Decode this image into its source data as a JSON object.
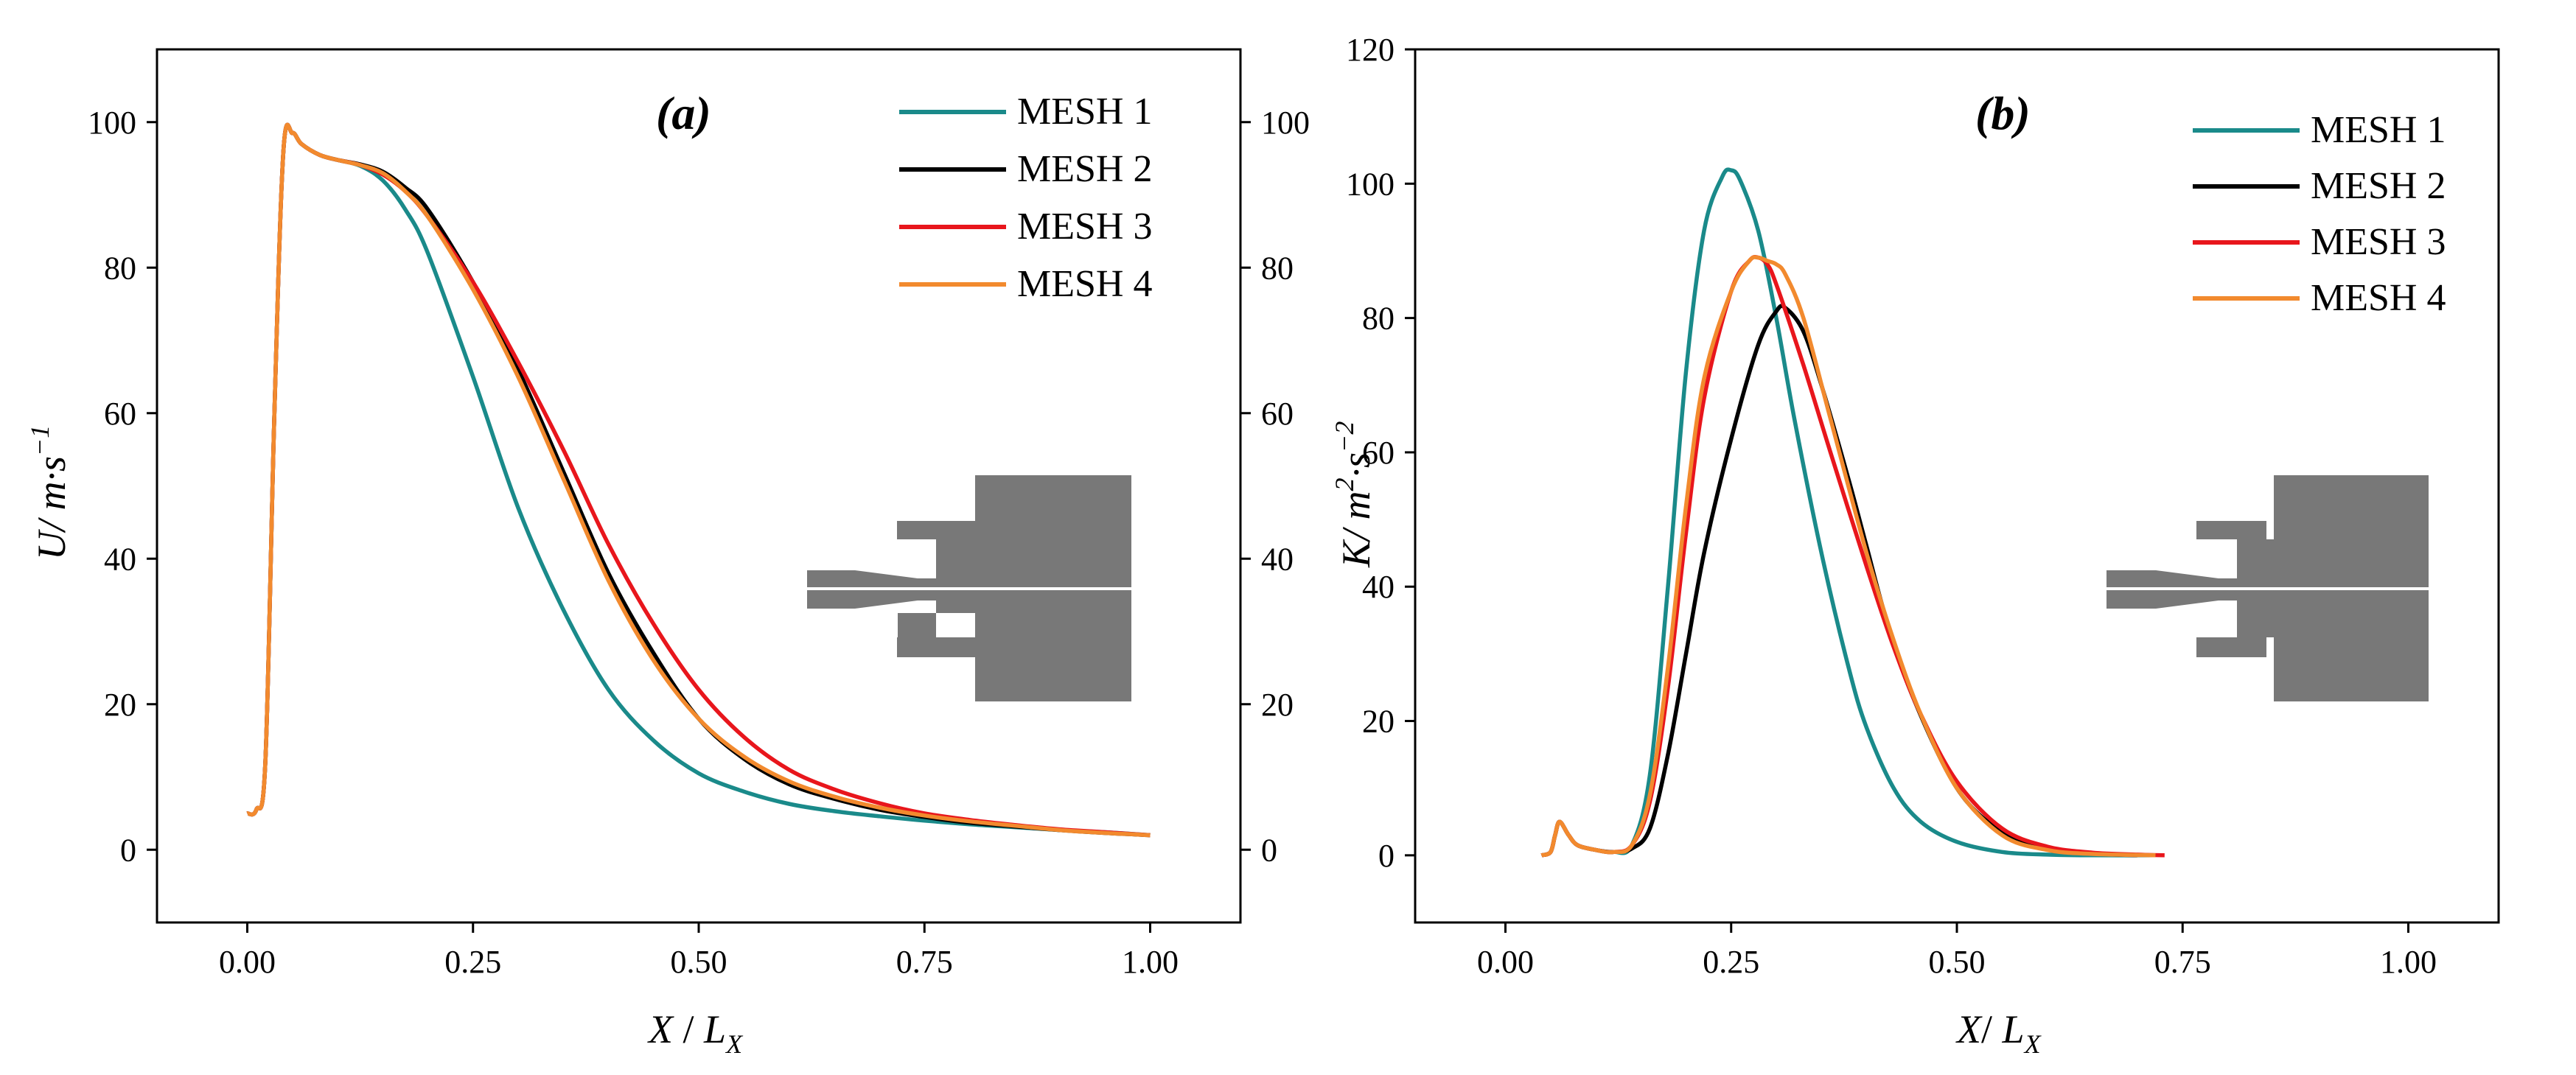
{
  "chart_data": [
    {
      "type": "line",
      "panel_label": "(a)",
      "xlabel": {
        "main": "X",
        "sep": " / ",
        "var": "L",
        "sub": "X"
      },
      "ylabel": {
        "main": "U",
        "unit": "/ m·s",
        "exp": "−1"
      },
      "xlim": [
        -0.1,
        1.1
      ],
      "ylim": [
        -10,
        110
      ],
      "xticks": [
        0.0,
        0.25,
        0.5,
        0.75,
        1.0
      ],
      "xtick_labels": [
        "0.00",
        "0.25",
        "0.50",
        "0.75",
        "1.00"
      ],
      "yticks": [
        0,
        20,
        40,
        60,
        80,
        100
      ],
      "ytick_labels": [
        "0",
        "20",
        "40",
        "60",
        "80",
        "100"
      ],
      "right_axis_mirrored": true,
      "legend_position": "top-right",
      "series": [
        {
          "name": "MESH 1",
          "color": "#1a8a8a",
          "x": [
            0,
            0.01,
            0.02,
            0.03,
            0.04,
            0.05,
            0.06,
            0.08,
            0.1,
            0.125,
            0.15,
            0.175,
            0.2,
            0.25,
            0.3,
            0.35,
            0.4,
            0.45,
            0.5,
            0.55,
            0.6,
            0.65,
            0.7,
            0.75,
            0.8,
            0.85,
            0.9,
            0.95,
            1.0
          ],
          "y": [
            5,
            5.5,
            12,
            60,
            96,
            98.5,
            97,
            95.5,
            94.8,
            94,
            92,
            88,
            82,
            65,
            47,
            33,
            22,
            15,
            10.5,
            8,
            6.3,
            5.3,
            4.6,
            4.0,
            3.5,
            3.1,
            2.7,
            2.4,
            2.0
          ]
        },
        {
          "name": "MESH 2",
          "color": "#000000",
          "x": [
            0,
            0.01,
            0.02,
            0.03,
            0.04,
            0.05,
            0.06,
            0.08,
            0.1,
            0.125,
            0.15,
            0.175,
            0.2,
            0.25,
            0.3,
            0.35,
            0.4,
            0.45,
            0.5,
            0.55,
            0.6,
            0.65,
            0.7,
            0.75,
            0.8,
            0.85,
            0.9,
            0.95,
            1.0
          ],
          "y": [
            5,
            5.5,
            12,
            60,
            96,
            98.5,
            97,
            95.5,
            94.8,
            94.2,
            93.2,
            91,
            88,
            78,
            66,
            52,
            38,
            27,
            18,
            12.5,
            9,
            7,
            5.5,
            4.5,
            3.7,
            3.2,
            2.7,
            2.3,
            2.0
          ]
        },
        {
          "name": "MESH 3",
          "color": "#e8161c",
          "x": [
            0,
            0.01,
            0.02,
            0.03,
            0.04,
            0.05,
            0.06,
            0.08,
            0.1,
            0.125,
            0.15,
            0.175,
            0.2,
            0.25,
            0.3,
            0.35,
            0.4,
            0.45,
            0.5,
            0.55,
            0.6,
            0.65,
            0.7,
            0.75,
            0.8,
            0.85,
            0.9,
            0.95,
            1.0
          ],
          "y": [
            5,
            5.5,
            12,
            60,
            96,
            98.5,
            97,
            95.5,
            94.8,
            94.1,
            92.8,
            90.5,
            87,
            78,
            67,
            55,
            42,
            31,
            22,
            15.5,
            11,
            8.3,
            6.4,
            5.0,
            4.1,
            3.4,
            2.8,
            2.4,
            2.0
          ]
        },
        {
          "name": "MESH 4",
          "color": "#f28a2e",
          "x": [
            0,
            0.01,
            0.02,
            0.03,
            0.04,
            0.05,
            0.06,
            0.08,
            0.1,
            0.125,
            0.15,
            0.175,
            0.2,
            0.25,
            0.3,
            0.35,
            0.4,
            0.45,
            0.5,
            0.55,
            0.6,
            0.65,
            0.7,
            0.75,
            0.8,
            0.85,
            0.9,
            0.95,
            1.0
          ],
          "y": [
            5,
            5.5,
            12,
            60,
            96,
            98.5,
            97,
            95.5,
            94.8,
            94.1,
            93,
            90.5,
            87,
            77,
            65,
            51,
            37,
            26,
            18,
            12.8,
            9.4,
            7.3,
            5.8,
            4.7,
            3.9,
            3.3,
            2.7,
            2.3,
            2.0
          ]
        }
      ]
    },
    {
      "type": "line",
      "panel_label": "(b)",
      "xlabel": {
        "main": "X",
        "sep": "/ ",
        "var": "L",
        "sub": "X"
      },
      "ylabel": {
        "main": "K",
        "unit": "/ m",
        "sq": "2",
        "mid": "·s",
        "exp": "−2"
      },
      "xlim": [
        -0.1,
        1.1
      ],
      "ylim": [
        -10,
        120
      ],
      "xticks": [
        0.0,
        0.25,
        0.5,
        0.75,
        1.0
      ],
      "xtick_labels": [
        "0.00",
        "0.25",
        "0.50",
        "0.75",
        "1.00"
      ],
      "yticks": [
        0,
        20,
        40,
        60,
        80,
        100,
        120
      ],
      "ytick_labels": [
        "0",
        "20",
        "40",
        "60",
        "80",
        "100",
        "120"
      ],
      "legend_position": "top-right",
      "series": [
        {
          "name": "MESH 1",
          "color": "#1a8a8a",
          "x": [
            0.04,
            0.05,
            0.055,
            0.06,
            0.07,
            0.08,
            0.1,
            0.12,
            0.14,
            0.16,
            0.18,
            0.2,
            0.22,
            0.24,
            0.25,
            0.26,
            0.28,
            0.3,
            0.32,
            0.35,
            0.38,
            0.4,
            0.43,
            0.46,
            0.5,
            0.55,
            0.6,
            0.65,
            0.72
          ],
          "y": [
            0,
            0.5,
            3,
            5,
            3,
            1.5,
            0.8,
            0.5,
            1.5,
            12,
            40,
            72,
            93,
            101,
            102,
            100.5,
            93,
            80,
            65,
            45,
            28,
            19,
            10,
            5,
            2,
            0.5,
            0.1,
            0,
            0
          ]
        },
        {
          "name": "MESH 2",
          "color": "#000000",
          "x": [
            0.04,
            0.05,
            0.055,
            0.06,
            0.07,
            0.08,
            0.1,
            0.12,
            0.14,
            0.16,
            0.18,
            0.2,
            0.22,
            0.25,
            0.28,
            0.3,
            0.31,
            0.33,
            0.35,
            0.38,
            0.4,
            0.42,
            0.45,
            0.5,
            0.55,
            0.6,
            0.65,
            0.7
          ],
          "y": [
            0,
            0.5,
            3,
            5,
            3,
            1.5,
            0.8,
            0.5,
            1,
            4,
            15,
            30,
            45,
            62,
            76,
            81,
            81.5,
            78,
            70,
            56,
            46,
            36,
            24,
            10,
            3.5,
            1.2,
            0.3,
            0
          ]
        },
        {
          "name": "MESH 3",
          "color": "#e8161c",
          "x": [
            0.04,
            0.05,
            0.055,
            0.06,
            0.07,
            0.08,
            0.1,
            0.12,
            0.14,
            0.16,
            0.18,
            0.2,
            0.22,
            0.25,
            0.27,
            0.28,
            0.29,
            0.3,
            0.33,
            0.36,
            0.4,
            0.43,
            0.46,
            0.5,
            0.55,
            0.6,
            0.65,
            0.7,
            0.73
          ],
          "y": [
            0,
            0.5,
            3,
            5,
            3,
            1.5,
            0.8,
            0.5,
            1.5,
            8,
            25,
            48,
            68,
            84,
            88.5,
            89,
            88,
            85,
            73,
            60,
            43,
            31,
            21,
            11,
            4,
            1.3,
            0.4,
            0.1,
            0
          ]
        },
        {
          "name": "MESH 4",
          "color": "#f28a2e",
          "x": [
            0.04,
            0.05,
            0.055,
            0.06,
            0.07,
            0.08,
            0.1,
            0.12,
            0.14,
            0.16,
            0.18,
            0.2,
            0.22,
            0.25,
            0.27,
            0.28,
            0.29,
            0.3,
            0.31,
            0.33,
            0.36,
            0.4,
            0.43,
            0.46,
            0.5,
            0.55,
            0.6,
            0.65,
            0.72
          ],
          "y": [
            0,
            0.5,
            3,
            5,
            3,
            1.5,
            0.8,
            0.5,
            1.5,
            9,
            28,
            52,
            71,
            84,
            88.5,
            89,
            88.5,
            88,
            86.5,
            80,
            65,
            45,
            32,
            21,
            10,
            3,
            0.8,
            0.2,
            0
          ]
        }
      ]
    }
  ]
}
